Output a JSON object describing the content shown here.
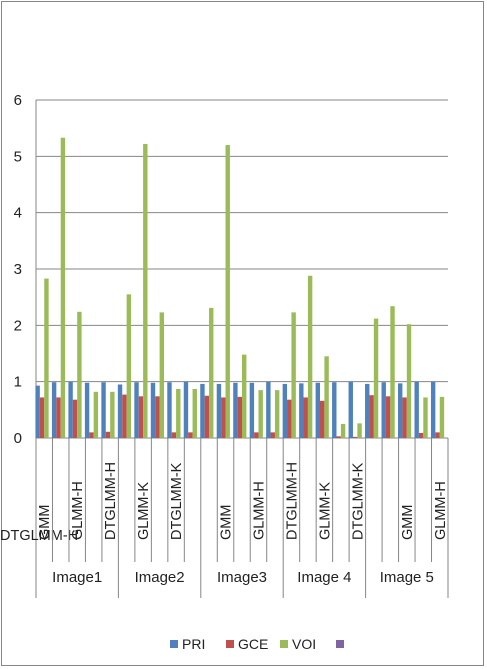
{
  "chart_data": {
    "type": "bar",
    "title": "",
    "xlabel": "",
    "ylabel": "",
    "ylim": [
      0,
      6
    ],
    "yticks": [
      "0",
      "1",
      "2",
      "3",
      "4",
      "5",
      "6"
    ],
    "grid": true,
    "legend_position": "bottom",
    "groups": [
      {
        "label": "Image1",
        "categories": [
          "GMM",
          "GLMM-H",
          "DTGLMM-H"
        ]
      },
      {
        "label": "Image2",
        "categories": [
          "GLMM-K",
          "DTGLMM-K"
        ]
      },
      {
        "label": "Image3",
        "categories": [
          "GMM",
          "GLMM-H",
          "DTGLMM-H"
        ]
      },
      {
        "label": "Image 4",
        "categories": [
          "GLMM-K",
          "DTGLMM-K"
        ]
      },
      {
        "label": "Image 5",
        "categories": [
          "GMM",
          "GLMM-H",
          "DTGLMM-H"
        ]
      }
    ],
    "categories": [
      "GMM",
      "GLMM-K",
      "GLMM-H",
      "DTGLMM-K",
      "DTGLMM-H",
      "GMM",
      "GLMM-K",
      "GLMM-H",
      "DTGLMM-K",
      "DTGLMM-H",
      "GMM",
      "GLMM-K",
      "GLMM-H",
      "DTGLMM-K",
      "DTGLMM-H",
      "GMM",
      "GLMM-K",
      "GLMM-H",
      "DTGLMM-K",
      "DTGLMM-H",
      "GMM",
      "GLMM-K",
      "GLMM-H",
      "DTGLMM-K",
      "DTGLMM-H"
    ],
    "series": [
      {
        "name": "PRI",
        "color": "#4F81BD",
        "values": [
          0.93,
          0.99,
          1.0,
          0.98,
          0.99,
          0.95,
          0.99,
          0.98,
          0.99,
          1.0,
          0.96,
          0.96,
          0.98,
          0.98,
          1.0,
          0.96,
          0.97,
          0.98,
          0.99,
          1.0,
          0.96,
          0.99,
          0.97,
          1.0,
          1.0
        ]
      },
      {
        "name": "GCE",
        "color": "#C0504D",
        "values": [
          0.72,
          0.72,
          0.68,
          0.1,
          0.11,
          0.77,
          0.74,
          0.74,
          0.1,
          0.1,
          0.75,
          0.72,
          0.73,
          0.1,
          0.1,
          0.68,
          0.72,
          0.66,
          0.03,
          0.02,
          0.76,
          0.74,
          0.72,
          0.09,
          0.1
        ]
      },
      {
        "name": "VOI",
        "color": "#9BBB59",
        "values": [
          2.83,
          5.33,
          2.24,
          0.82,
          0.82,
          2.55,
          5.22,
          2.23,
          0.87,
          0.87,
          2.31,
          5.2,
          1.48,
          0.85,
          0.85,
          2.23,
          2.88,
          1.45,
          0.25,
          0.26,
          2.12,
          2.34,
          2.02,
          0.72,
          0.73
        ]
      },
      {
        "name": "",
        "color": "#8064A2",
        "values": [
          0,
          0,
          0,
          0,
          0,
          0,
          0,
          0,
          0,
          0,
          0,
          0,
          0,
          0,
          0,
          0,
          0,
          0,
          0,
          0,
          0,
          0,
          0,
          0,
          0
        ]
      }
    ]
  }
}
